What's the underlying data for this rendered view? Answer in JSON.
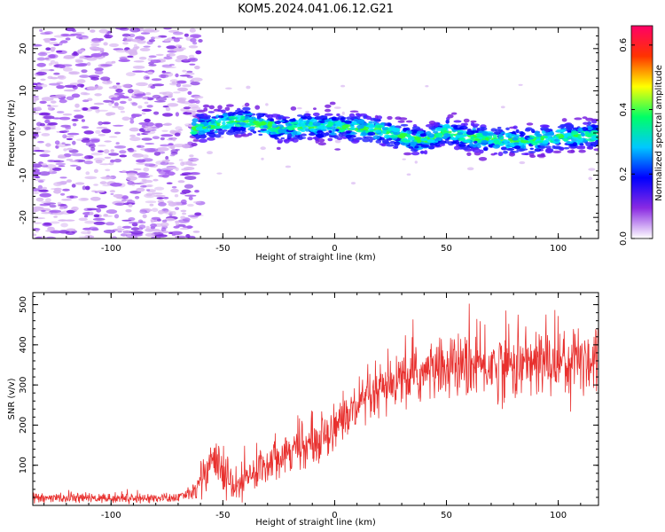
{
  "title": "KOM5.2024.041.06.12.G21",
  "colors": {
    "snr_line": "#e8302e",
    "axis": "#000000",
    "speckle_light": "#d9b8f2",
    "speckle_mid": "#a35cf0",
    "speckle_dark": "#7a22e0"
  },
  "chart_data": [
    {
      "type": "heatmap",
      "xlabel": "Height of straight line (km)",
      "ylabel": "Frequency (Hz)",
      "xlim": [
        -135,
        118
      ],
      "ylim": [
        -25,
        25
      ],
      "xticks": [
        "-100",
        "-50",
        "0",
        "50",
        "100"
      ],
      "xtick_values": [
        -100,
        -50,
        0,
        50,
        100
      ],
      "yticks": [
        "20",
        "10",
        "0",
        "-10",
        "-20"
      ],
      "ytick_values": [
        20,
        10,
        0,
        -10,
        -20
      ],
      "colorbar": {
        "label": "Normalized spectral amplitude",
        "ticks": [
          "0.0",
          "0.2",
          "0.4",
          "0.6"
        ],
        "tick_values": [
          0.0,
          0.2,
          0.4,
          0.6
        ],
        "range": [
          0.0,
          0.66
        ],
        "colormap": [
          "#ffffff",
          "#8a2be2",
          "#0000ff",
          "#00c8ff",
          "#00ff66",
          "#ffff00",
          "#ff3300",
          "#ff0066"
        ]
      },
      "signal_band": {
        "x_start": -63,
        "x_end": 118,
        "center_freq_points": [
          [
            -63,
            1.0
          ],
          [
            -40,
            3.0
          ],
          [
            -25,
            1.0
          ],
          [
            -15,
            1.5
          ],
          [
            0,
            1.8
          ],
          [
            20,
            0.5
          ],
          [
            40,
            -2.0
          ],
          [
            50,
            0.5
          ],
          [
            58,
            -1.0
          ],
          [
            70,
            -1.5
          ],
          [
            85,
            -2.0
          ],
          [
            100,
            -1.0
          ],
          [
            118,
            -0.5
          ]
        ],
        "half_width_hz": 3.0
      }
    },
    {
      "type": "line",
      "xlabel": "Height of straight line (km)",
      "ylabel": "SNR (v/v)",
      "xlim": [
        -135,
        118
      ],
      "ylim": [
        0,
        530
      ],
      "xticks": [
        "-100",
        "-50",
        "0",
        "50",
        "100"
      ],
      "xtick_values": [
        -100,
        -50,
        0,
        50,
        100
      ],
      "yticks": [
        "100",
        "200",
        "300",
        "400",
        "500"
      ],
      "ytick_values": [
        100,
        200,
        300,
        400,
        500
      ],
      "trend_points": [
        [
          -135,
          18
        ],
        [
          -70,
          18
        ],
        [
          -62,
          40
        ],
        [
          -55,
          120
        ],
        [
          -45,
          40
        ],
        [
          -40,
          60
        ],
        [
          -30,
          110
        ],
        [
          -20,
          140
        ],
        [
          -10,
          150
        ],
        [
          0,
          200
        ],
        [
          10,
          240
        ],
        [
          20,
          280
        ],
        [
          30,
          310
        ],
        [
          40,
          330
        ],
        [
          50,
          345
        ],
        [
          60,
          345
        ],
        [
          80,
          350
        ],
        [
          100,
          360
        ],
        [
          118,
          370
        ]
      ],
      "noise_amplitude": [
        [
          -135,
          6
        ],
        [
          -65,
          6
        ],
        [
          -60,
          25
        ],
        [
          -50,
          30
        ],
        [
          -40,
          25
        ],
        [
          -20,
          25
        ],
        [
          0,
          30
        ],
        [
          30,
          35
        ],
        [
          60,
          40
        ],
        [
          118,
          50
        ]
      ]
    }
  ]
}
